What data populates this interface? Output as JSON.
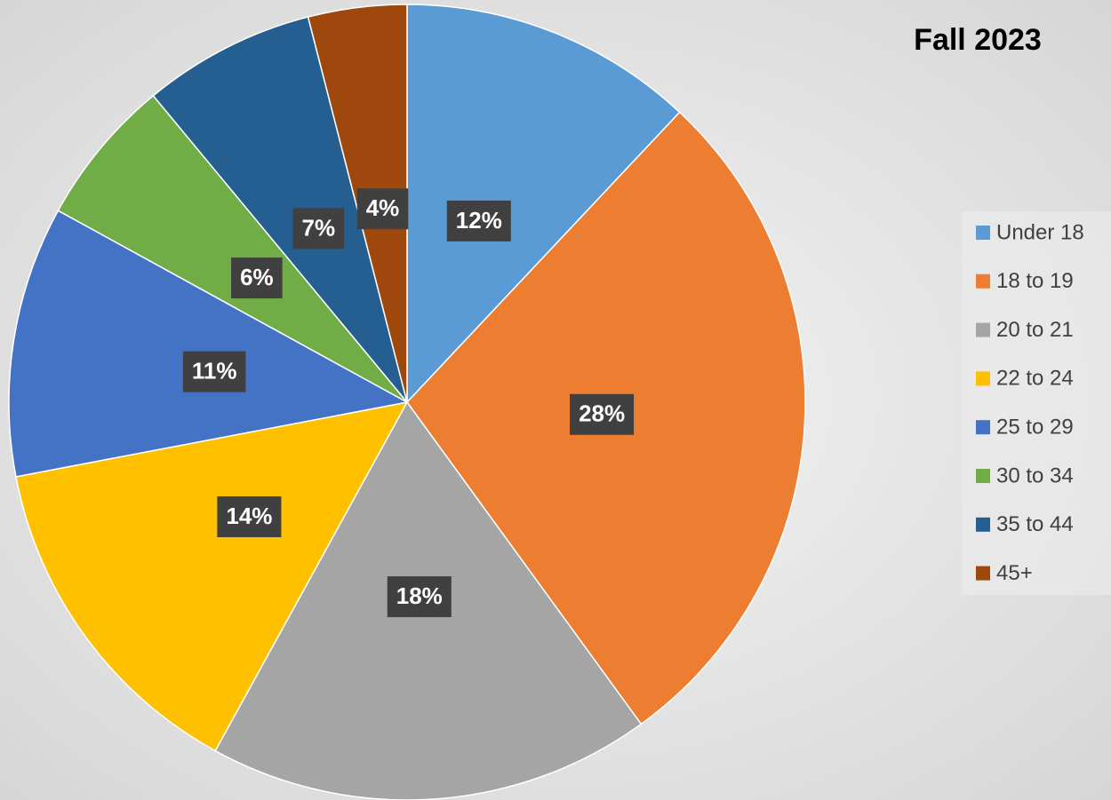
{
  "chart_data": {
    "type": "pie",
    "title": "Fall 2023",
    "categories": [
      "Under 18",
      "18 to 19",
      "20 to 21",
      "22 to 24",
      "25 to 29",
      "30 to 34",
      "35 to 44",
      "45+"
    ],
    "values": [
      12,
      28,
      18,
      14,
      11,
      6,
      7,
      4
    ],
    "value_labels": [
      "12%",
      "28%",
      "18%",
      "14%",
      "11%",
      "6%",
      "7%",
      "4%"
    ],
    "colors": [
      "#5b9bd5",
      "#ed7d31",
      "#a5a5a5",
      "#ffc000",
      "#4472c4",
      "#70ad47",
      "#255e91",
      "#9e480e"
    ],
    "legend": "right"
  }
}
